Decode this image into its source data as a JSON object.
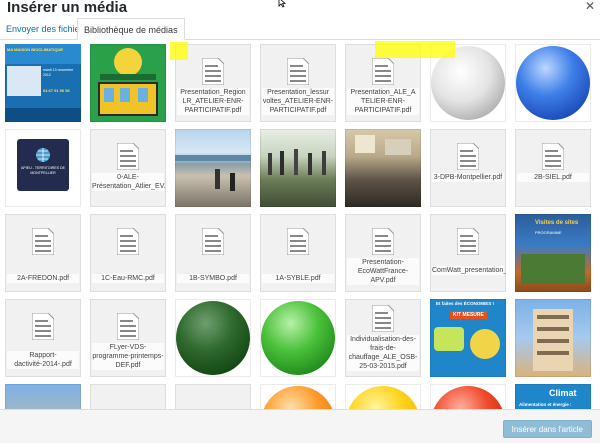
{
  "modal": {
    "title": "Insérer un média",
    "close_icon": "close-icon"
  },
  "tabs": [
    {
      "label": "Envoyer des fichiers"
    },
    {
      "label": "Bibliothèque de médias"
    }
  ],
  "footer": {
    "insert_label": "Insérer dans l'article"
  },
  "colors": {
    "link": "#0073aa",
    "highlight": "#ffff00",
    "button_disabled": "#8fbdd7"
  },
  "media": {
    "r0": [
      {
        "type": "image",
        "name": "Ma maison bioclimatique poster",
        "label": "MA MAISON BIOCLIMATIQUE",
        "sub": "mardi 13 novembre 2012",
        "phone": "04 67 91 96 96"
      },
      {
        "type": "image",
        "name": "Green building illustration"
      },
      {
        "type": "doc",
        "label": "Presentation_Region LR_ATELIER-ENR-PARTICIPATIF.pdf"
      },
      {
        "type": "doc",
        "label": "Presentation_lessur voltes_ATELIER-ENR-PARTICIPATIF.pdf"
      },
      {
        "type": "doc",
        "label": "Presentation_ALE_A TELIER-ENR-PARTICIPATIF.pdf"
      },
      {
        "type": "image",
        "name": "Grey circle"
      },
      {
        "type": "image",
        "name": "Blue circle"
      }
    ],
    "r1": [
      {
        "type": "image",
        "name": "Apieu logo",
        "label": "APIEU - TERRITOIRES DE MONTPELLIER"
      },
      {
        "type": "doc",
        "label": "0-ALE-Présentation_Atlier_EV.pdf"
      },
      {
        "type": "image",
        "name": "Seaside street photo"
      },
      {
        "type": "image",
        "name": "Greenhouse group photo"
      },
      {
        "type": "image",
        "name": "Meeting room photo"
      },
      {
        "type": "doc",
        "label": "3-DPB-Montpellier.pdf"
      },
      {
        "type": "doc",
        "label": "2B-SIEL.pdf"
      }
    ],
    "r2": [
      {
        "type": "doc",
        "label": "2A-FREDON.pdf"
      },
      {
        "type": "doc",
        "label": "1C-Eau-RMC.pdf"
      },
      {
        "type": "doc",
        "label": "1B-SYMBO.pdf"
      },
      {
        "type": "doc",
        "label": "1A-SYBLE.pdf"
      },
      {
        "type": "doc",
        "label": "Presentation-EcoWattFrance-APV.pdf"
      },
      {
        "type": "doc",
        "label": "ComWatt_presentation_ALE.pdf"
      },
      {
        "type": "image",
        "name": "Visites de sites programme",
        "label": "Visites de sites",
        "sub": "PROGRAMME"
      }
    ],
    "r3": [
      {
        "type": "doc",
        "label": "Rapport-dactivité-2014-.pdf"
      },
      {
        "type": "doc",
        "label": "FLyer-VDS-programme-printemps-DEF.pdf"
      },
      {
        "type": "image",
        "name": "Dark green circle"
      },
      {
        "type": "image",
        "name": "Green circle"
      },
      {
        "type": "doc",
        "label": "Individualisation-des-frais-de-chauffage_ALE_OSB-25-03-2015.pdf"
      },
      {
        "type": "image",
        "name": "Kit mesure flyer",
        "label": "Et faites des ÉCONOMIES !",
        "sub": "KIT MESURE"
      },
      {
        "type": "image",
        "name": "Apartment building photo"
      }
    ],
    "r4": [
      {
        "type": "image",
        "name": "Building photo"
      },
      {
        "type": "image",
        "name": "Partial tile"
      },
      {
        "type": "image",
        "name": "Partial tile"
      },
      {
        "type": "image",
        "name": "Orange circle"
      },
      {
        "type": "image",
        "name": "Yellow circle"
      },
      {
        "type": "image",
        "name": "Red circle"
      },
      {
        "type": "image",
        "name": "Climat flyer",
        "label": "Climat",
        "sub": "Alimentation et énergie :"
      }
    ]
  }
}
